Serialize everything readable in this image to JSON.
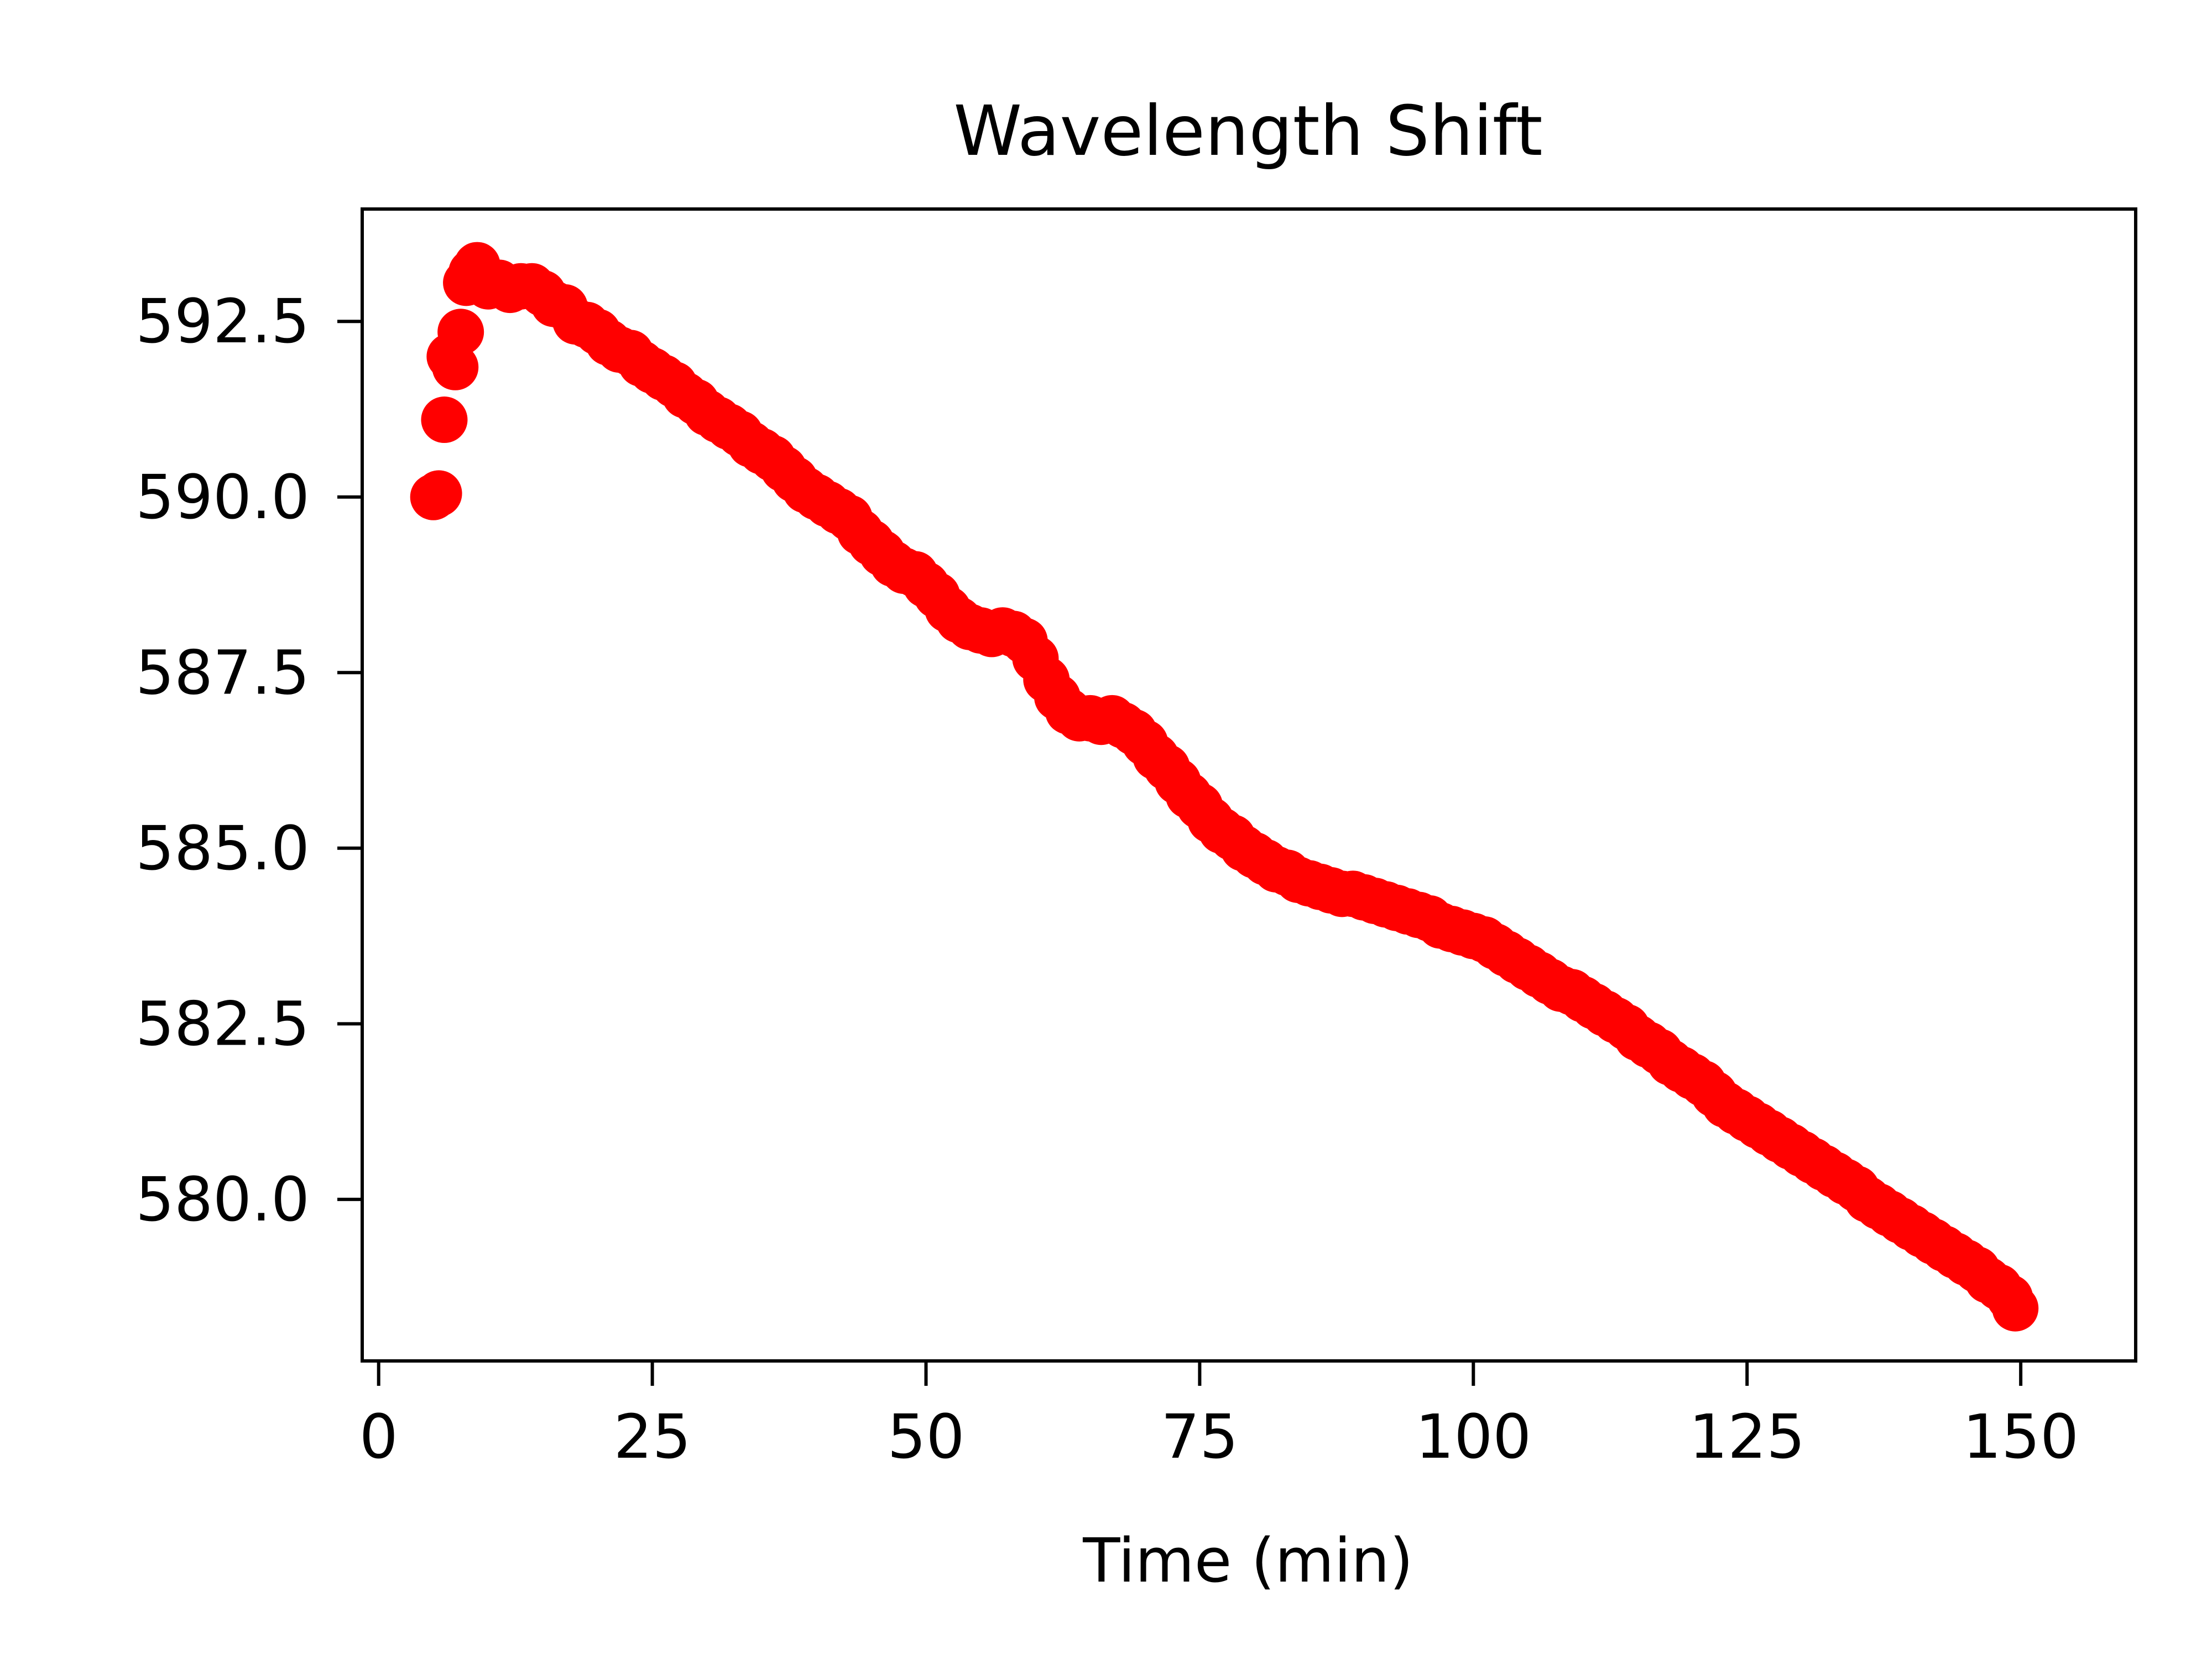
{
  "chart_data": {
    "type": "scatter",
    "title": "Wavelength Shift",
    "xlabel": "Time (min)",
    "ylabel": "",
    "xlim": [
      -1.5,
      160.5
    ],
    "ylim": [
      577.7,
      594.1
    ],
    "x_ticks": [
      0,
      25,
      50,
      75,
      100,
      125,
      150
    ],
    "x_tick_labels": [
      "0",
      "25",
      "50",
      "75",
      "100",
      "125",
      "150"
    ],
    "y_ticks": [
      580.0,
      582.5,
      585.0,
      587.5,
      590.0,
      592.5
    ],
    "y_tick_labels": [
      "580.0",
      "582.5",
      "585.0",
      "587.5",
      "590.0",
      "592.5"
    ],
    "grid": false,
    "legend": "none",
    "marker_color": "#ff0000",
    "series": [
      {
        "x": [
          5.0,
          5.5,
          6.0,
          6.5,
          7.0,
          7.5,
          8.0,
          8.5,
          9.0,
          9.5,
          10.0,
          11.0,
          12.0,
          13.0,
          14.0,
          15.0,
          16.0,
          17.0,
          18.0,
          19.0,
          20.0,
          21.0,
          22.0,
          23.0,
          24.0,
          25.0,
          26.0,
          27.0,
          28.0,
          29.0,
          30.0,
          31.0,
          32.0,
          33.0,
          34.0,
          35.0,
          36.0,
          37.0,
          38.0,
          39.0,
          40.0,
          41.0,
          42.0,
          43.0,
          44.0,
          45.0,
          46.0,
          47.0,
          48.0,
          49.0,
          50.0,
          51.0,
          52.0,
          53.0,
          54.0,
          55.0,
          56.0,
          57.0,
          58.0,
          59.0,
          60.0,
          61.0,
          62.0,
          63.0,
          64.0,
          65.0,
          66.0,
          67.0,
          68.0,
          69.0,
          70.0,
          71.0,
          72.0,
          73.0,
          74.0,
          75.0,
          76.0,
          77.0,
          78.0,
          79.0,
          80.0,
          81.0,
          82.0,
          83.0,
          84.0,
          85.0,
          86.0,
          87.0,
          88.0,
          89.0,
          90.0,
          91.0,
          92.0,
          93.0,
          94.0,
          95.0,
          96.0,
          97.0,
          98.0,
          99.0,
          100.0,
          101.0,
          102.0,
          103.0,
          104.0,
          105.0,
          106.0,
          107.0,
          108.0,
          109.0,
          110.0,
          111.0,
          112.0,
          113.0,
          114.0,
          115.0,
          116.0,
          117.0,
          118.0,
          119.0,
          120.0,
          121.0,
          122.0,
          123.0,
          124.0,
          125.0,
          126.0,
          127.0,
          128.0,
          129.0,
          130.0,
          131.0,
          132.0,
          133.0,
          134.0,
          135.0,
          136.0,
          137.0,
          138.0,
          139.0,
          140.0,
          141.0,
          142.0,
          143.0,
          144.0,
          145.0,
          146.0,
          147.0,
          148.0,
          149.0,
          149.5
        ],
        "y": [
          590.0,
          590.05,
          591.1,
          592.0,
          591.85,
          592.35,
          593.05,
          593.2,
          593.3,
          593.15,
          593.0,
          593.05,
          592.95,
          593.0,
          593.0,
          592.9,
          592.75,
          592.7,
          592.5,
          592.45,
          592.35,
          592.2,
          592.1,
          592.05,
          591.9,
          591.8,
          591.7,
          591.6,
          591.45,
          591.35,
          591.2,
          591.1,
          591.0,
          590.9,
          590.75,
          590.65,
          590.55,
          590.4,
          590.25,
          590.1,
          590.0,
          589.9,
          589.8,
          589.7,
          589.5,
          589.35,
          589.2,
          589.05,
          588.95,
          588.9,
          588.75,
          588.6,
          588.4,
          588.25,
          588.15,
          588.1,
          588.05,
          588.1,
          588.05,
          587.95,
          587.7,
          587.4,
          587.15,
          586.95,
          586.85,
          586.85,
          586.8,
          586.85,
          586.75,
          586.65,
          586.5,
          586.3,
          586.15,
          585.95,
          585.75,
          585.6,
          585.4,
          585.25,
          585.15,
          585.0,
          584.9,
          584.8,
          584.7,
          584.65,
          584.55,
          584.5,
          584.45,
          584.4,
          584.35,
          584.35,
          584.3,
          584.25,
          584.2,
          584.15,
          584.1,
          584.05,
          584.0,
          583.9,
          583.85,
          583.8,
          583.75,
          583.7,
          583.6,
          583.5,
          583.4,
          583.3,
          583.2,
          583.1,
          583.0,
          582.95,
          582.85,
          582.75,
          582.65,
          582.55,
          582.45,
          582.3,
          582.2,
          582.1,
          581.95,
          581.85,
          581.75,
          581.65,
          581.5,
          581.35,
          581.25,
          581.15,
          581.05,
          580.95,
          580.85,
          580.75,
          580.65,
          580.55,
          580.45,
          580.35,
          580.25,
          580.15,
          580.0,
          579.9,
          579.8,
          579.7,
          579.6,
          579.5,
          579.4,
          579.3,
          579.2,
          579.1,
          579.0,
          578.85,
          578.75,
          578.6,
          578.45
        ]
      }
    ]
  }
}
